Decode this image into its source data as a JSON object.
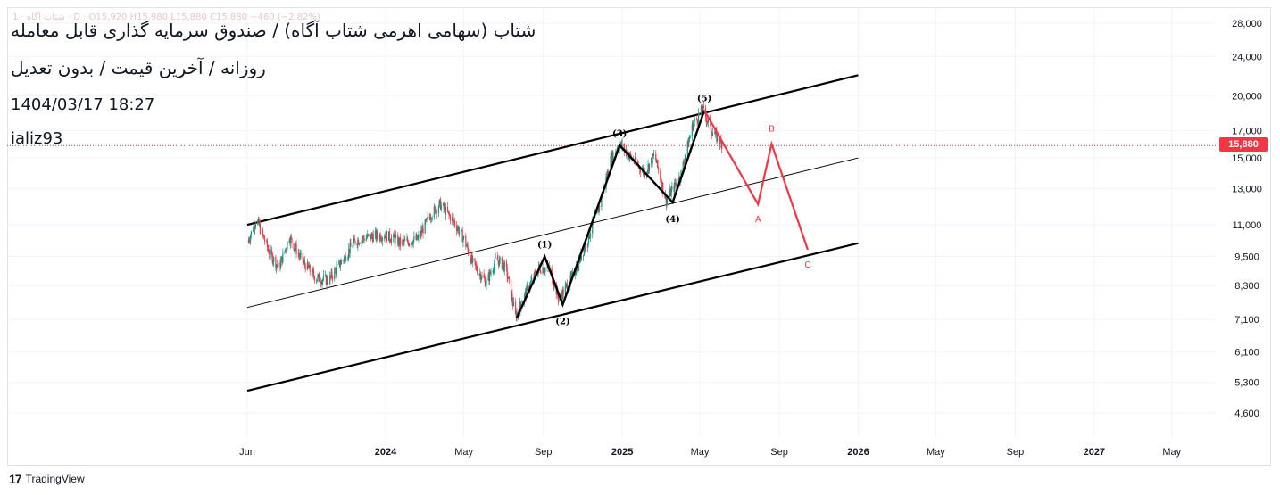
{
  "header": {
    "faint_legend": "1 · شتاب آگاه · D · O15,920 H15,980 L15,880 C15,880 −460 (−2.82%)",
    "title": "شتاب (سهامی اهرمی شتاب آگاه) / صندوق سرمایه گذاری قابل معامله",
    "subtitle": "روزانه / آخرین قیمت / بدون تعدیل",
    "timestamp": "1404/03/17  18:27",
    "author": "ializ93"
  },
  "footer": {
    "logo": "17",
    "brand": "TradingView"
  },
  "colors": {
    "up": "#089981",
    "down": "#f23645",
    "projection": "#f23645",
    "wave": "#000000",
    "grid": "#f0f3fa"
  },
  "chart_data": {
    "type": "candlestick",
    "scale": "log",
    "last_price": "15,880",
    "y_ticks": [
      4600,
      5300,
      6100,
      7100,
      8300,
      9500,
      11000,
      13000,
      15000,
      17000,
      20000,
      24000,
      28000
    ],
    "y_tick_labels": [
      "4,600",
      "5,300",
      "6,100",
      "7,100",
      "8,300",
      "9,500",
      "11,000",
      "13,000",
      "15,000",
      "17,000",
      "20,000",
      "24,000",
      "28,000"
    ],
    "x_ticks": [
      {
        "label": "Jun",
        "date": "2023-06-01",
        "bold": false
      },
      {
        "label": "2024",
        "date": "2024-01-01",
        "bold": true
      },
      {
        "label": "May",
        "date": "2024-05-01",
        "bold": false
      },
      {
        "label": "Sep",
        "date": "2024-09-01",
        "bold": false
      },
      {
        "label": "2025",
        "date": "2025-01-01",
        "bold": true
      },
      {
        "label": "May",
        "date": "2025-05-01",
        "bold": false
      },
      {
        "label": "Sep",
        "date": "2025-09-01",
        "bold": false
      },
      {
        "label": "2026",
        "date": "2026-01-01",
        "bold": true
      },
      {
        "label": "May",
        "date": "2026-05-01",
        "bold": false
      },
      {
        "label": "Sep",
        "date": "2026-09-01",
        "bold": false
      },
      {
        "label": "2027",
        "date": "2027-01-01",
        "bold": true
      },
      {
        "label": "May",
        "date": "2027-05-01",
        "bold": false
      }
    ],
    "price_path": [
      [
        "2023-06-01",
        10100
      ],
      [
        "2023-06-15",
        11300
      ],
      [
        "2023-07-05",
        9700
      ],
      [
        "2023-07-20",
        9000
      ],
      [
        "2023-08-05",
        10400
      ],
      [
        "2023-08-25",
        9300
      ],
      [
        "2023-09-15",
        8600
      ],
      [
        "2023-10-05",
        8500
      ],
      [
        "2023-10-25",
        9300
      ],
      [
        "2023-11-15",
        10200
      ],
      [
        "2023-12-05",
        10400
      ],
      [
        "2024-01-01",
        10500
      ],
      [
        "2024-01-25",
        10100
      ],
      [
        "2024-02-20",
        10300
      ],
      [
        "2024-03-10",
        11500
      ],
      [
        "2024-03-25",
        12100
      ],
      [
        "2024-04-15",
        11200
      ],
      [
        "2024-05-01",
        10300
      ],
      [
        "2024-05-15",
        9200
      ],
      [
        "2024-06-05",
        8400
      ],
      [
        "2024-06-20",
        9400
      ],
      [
        "2024-07-05",
        9000
      ],
      [
        "2024-07-20",
        7200
      ],
      [
        "2024-08-10",
        8300
      ],
      [
        "2024-08-25",
        9000
      ],
      [
        "2024-09-10",
        9000
      ],
      [
        "2024-09-25",
        7800
      ],
      [
        "2024-10-15",
        8600
      ],
      [
        "2024-11-05",
        10000
      ],
      [
        "2024-11-25",
        11800
      ],
      [
        "2024-12-15",
        15000
      ],
      [
        "2024-12-28",
        16000
      ],
      [
        "2025-01-15",
        15000
      ],
      [
        "2025-02-05",
        14000
      ],
      [
        "2025-02-20",
        15200
      ],
      [
        "2025-03-10",
        12300
      ],
      [
        "2025-04-01",
        13800
      ],
      [
        "2025-04-20",
        17500
      ],
      [
        "2025-05-05",
        18800
      ],
      [
        "2025-05-20",
        17000
      ],
      [
        "2025-06-06",
        15880
      ]
    ],
    "channel": {
      "upper": [
        [
          "2023-06-01",
          11000
        ],
        [
          "2026-01-01",
          22000
        ]
      ],
      "middle": [
        [
          "2023-06-01",
          7500
        ],
        [
          "2026-01-01",
          15000
        ]
      ],
      "lower": [
        [
          "2023-06-01",
          5100
        ],
        [
          "2026-01-01",
          10100
        ]
      ]
    },
    "wave_points": [
      {
        "date": "2024-07-22",
        "price": 7150,
        "label": ""
      },
      {
        "date": "2024-09-03",
        "price": 9500,
        "label": "(1)"
      },
      {
        "date": "2024-10-01",
        "price": 7600,
        "label": "(2)"
      },
      {
        "date": "2024-12-28",
        "price": 15900,
        "label": "(3)"
      },
      {
        "date": "2025-03-20",
        "price": 12200,
        "label": "(4)"
      },
      {
        "date": "2025-05-08",
        "price": 18700,
        "label": "(5)"
      }
    ],
    "projection_points": [
      {
        "date": "2025-05-08",
        "price": 18700,
        "label": ""
      },
      {
        "date": "2025-07-30",
        "price": 12100,
        "label": "A"
      },
      {
        "date": "2025-08-20",
        "price": 16000,
        "label": "B"
      },
      {
        "date": "2025-10-15",
        "price": 9800,
        "label": "C"
      }
    ]
  }
}
